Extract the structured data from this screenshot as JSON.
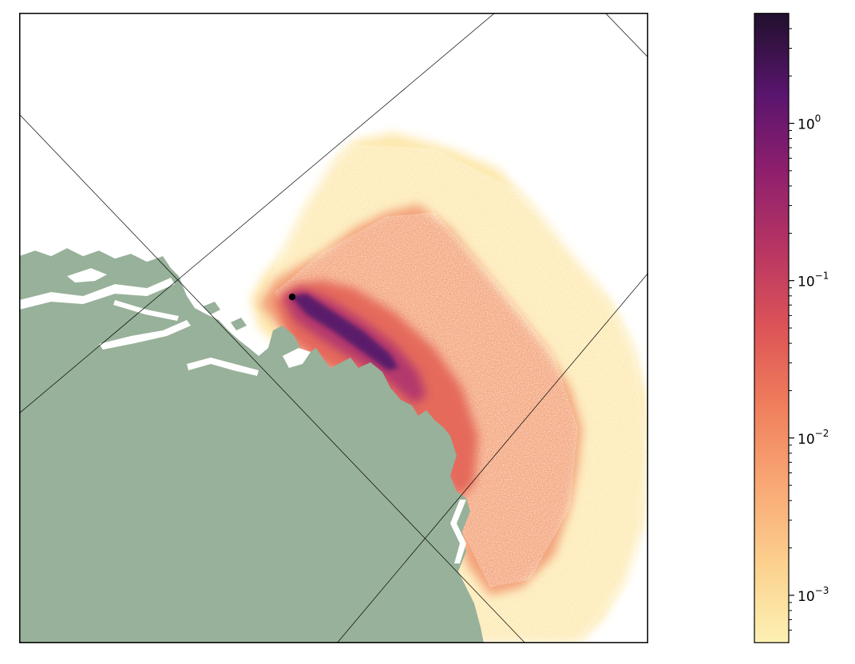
{
  "map": {
    "colors": {
      "land": "#98b19a",
      "ocean": "#ffffff",
      "frame": "#000000",
      "gridline": "#000000",
      "source_marker": "#000000"
    },
    "colormap": "magma_r",
    "source_marker": "black-dot"
  },
  "colorbar": {
    "scale": "log",
    "range": [
      0.0005,
      5
    ],
    "ticks": [
      {
        "value": 1,
        "base": "10",
        "exp": "0"
      },
      {
        "value": 0.1,
        "base": "10",
        "exp": "−1"
      },
      {
        "value": 0.01,
        "base": "10",
        "exp": "−2"
      },
      {
        "value": 0.001,
        "base": "10",
        "exp": "−3"
      }
    ]
  }
}
